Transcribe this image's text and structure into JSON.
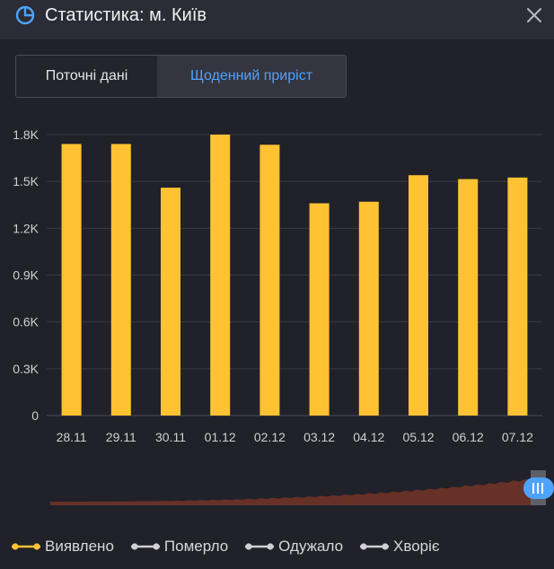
{
  "header": {
    "title": "Статистика: м. Київ",
    "icon": "pie-chart-icon",
    "close_icon": "close-icon"
  },
  "tabs": [
    {
      "label": "Поточні дані",
      "active": false
    },
    {
      "label": "Щоденний приріст",
      "active": true
    }
  ],
  "colors": {
    "bar": "#ffc233",
    "accent": "#4ea3ff",
    "background": "#202129",
    "grid": "#393a44",
    "navigator_area": "#6b3327"
  },
  "chart_data": {
    "type": "bar",
    "categories": [
      "28.11",
      "29.11",
      "30.11",
      "01.12",
      "02.12",
      "03.12",
      "04.12",
      "05.12",
      "06.12",
      "07.12"
    ],
    "series": [
      {
        "name": "Виявлено",
        "values": [
          1740,
          1740,
          1460,
          1800,
          1735,
          1360,
          1370,
          1540,
          1515,
          1525
        ]
      }
    ],
    "ylim": [
      0,
      1800
    ],
    "yticks": [
      0,
      300,
      600,
      900,
      1200,
      1500,
      1800
    ],
    "ytick_labels": [
      "0",
      "0.3K",
      "0.6K",
      "0.9K",
      "1.2K",
      "1.5K",
      "1.8K"
    ],
    "grid": true,
    "legend_position": "bottom-left",
    "legend": [
      {
        "label": "Виявлено",
        "color": "#ffc233",
        "active": true
      },
      {
        "label": "Померло",
        "color": "#d0d0d4",
        "active": false
      },
      {
        "label": "Одужало",
        "color": "#d0d0d4",
        "active": false
      },
      {
        "label": "Хворіє",
        "color": "#d0d0d4",
        "active": false
      }
    ]
  }
}
